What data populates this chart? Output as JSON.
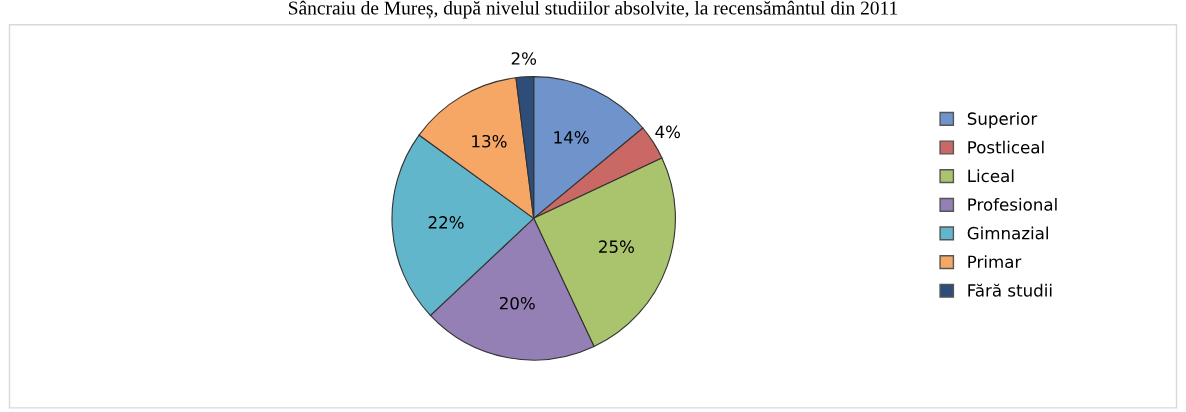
{
  "chart_data": {
    "type": "pie",
    "title": "Sâncraiu de Mureș, după nivelul studiilor absolvite, la recensământul din 2011",
    "categories": [
      "Superior",
      "Postliceal",
      "Liceal",
      "Profesional",
      "Gimnazial",
      "Primar",
      "Fără studii"
    ],
    "values": [
      14,
      4,
      25,
      20,
      22,
      13,
      2
    ],
    "colors": [
      "#6f93cb",
      "#c96865",
      "#aac46e",
      "#9580b5",
      "#62b6cb",
      "#f6a766",
      "#2e4d78"
    ],
    "value_labels": [
      "14%",
      "4%",
      "25%",
      "20%",
      "22%",
      "13%",
      "2%"
    ],
    "legend": "right"
  }
}
